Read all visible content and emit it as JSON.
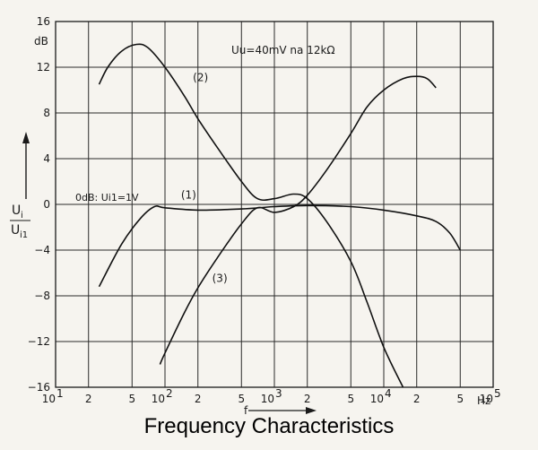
{
  "caption": "Frequency Characteristics",
  "chart_data": {
    "type": "line",
    "title": "",
    "xscale": "log",
    "xlim": [
      10,
      100000
    ],
    "ylim": [
      -16,
      16
    ],
    "y_unit_label": "dB",
    "ylabel_num": "U",
    "ylabel_num_sub": "i",
    "ylabel_den": "U",
    "ylabel_den_sub": "i1",
    "xlabel": "f",
    "x_unit_label": "Hz",
    "grid": true,
    "y_ticks": [
      {
        "value": 16,
        "label": "16"
      },
      {
        "value": 12,
        "label": "12"
      },
      {
        "value": 8,
        "label": "8"
      },
      {
        "value": 4,
        "label": "4"
      },
      {
        "value": 0,
        "label": "0"
      },
      {
        "value": -4,
        "label": "−4"
      },
      {
        "value": -8,
        "label": "−8"
      },
      {
        "value": -12,
        "label": "−12"
      },
      {
        "value": -16,
        "label": "−16"
      }
    ],
    "x_ticks": [
      {
        "value": 10,
        "base": "10",
        "exp": "1"
      },
      {
        "value": 20,
        "base": "2",
        "exp": ""
      },
      {
        "value": 50,
        "base": "5",
        "exp": ""
      },
      {
        "value": 100,
        "base": "10",
        "exp": "2"
      },
      {
        "value": 200,
        "base": "2",
        "exp": ""
      },
      {
        "value": 500,
        "base": "5",
        "exp": ""
      },
      {
        "value": 1000,
        "base": "10",
        "exp": "3"
      },
      {
        "value": 2000,
        "base": "2",
        "exp": ""
      },
      {
        "value": 5000,
        "base": "5",
        "exp": ""
      },
      {
        "value": 10000,
        "base": "10",
        "exp": "4"
      },
      {
        "value": 20000,
        "base": "2",
        "exp": ""
      },
      {
        "value": 50000,
        "base": "5",
        "exp": ""
      },
      {
        "value": 100000,
        "base": "10",
        "exp": "5"
      }
    ],
    "annotations": [
      {
        "id": "condition",
        "text": "Uu=40mV  na  12kΩ"
      },
      {
        "id": "reference",
        "text": "0dB: Ui1=1V"
      }
    ],
    "series": [
      {
        "name": "(1)",
        "x": [
          25,
          40,
          60,
          80,
          100,
          200,
          500,
          1000,
          2000,
          5000,
          10000,
          20000,
          30000,
          40000,
          50000
        ],
        "y": [
          -7.2,
          -3.5,
          -1.2,
          -0.2,
          -0.3,
          -0.5,
          -0.4,
          -0.2,
          -0.1,
          -0.2,
          -0.5,
          -1.0,
          -1.5,
          -2.5,
          -4.0
        ]
      },
      {
        "name": "(2)",
        "x": [
          25,
          30,
          40,
          55,
          70,
          100,
          150,
          200,
          300,
          500,
          700,
          1000,
          1500,
          2000,
          3000,
          5000,
          7000,
          10000,
          15000
        ],
        "y": [
          10.5,
          12.0,
          13.4,
          14.0,
          13.7,
          12.0,
          9.5,
          7.5,
          5.0,
          2.0,
          0.5,
          0.5,
          0.9,
          0.5,
          -1.5,
          -5.0,
          -8.5,
          -12.5,
          -16.0
        ]
      },
      {
        "name": "(3)",
        "x": [
          90,
          100,
          150,
          200,
          300,
          500,
          700,
          1000,
          1500,
          2000,
          3000,
          5000,
          7000,
          10000,
          15000,
          20000,
          25000,
          30000
        ],
        "y": [
          -14.0,
          -13.0,
          -9.5,
          -7.3,
          -4.7,
          -1.7,
          -0.3,
          -0.7,
          -0.2,
          0.8,
          3.0,
          6.2,
          8.5,
          10.0,
          11.0,
          11.2,
          11.0,
          10.2
        ]
      }
    ],
    "series_label_positions": [
      {
        "name": "(1)",
        "x": 140,
        "y": 0.5
      },
      {
        "name": "(2)",
        "x": 180,
        "y": 10.8
      },
      {
        "name": "(3)",
        "x": 270,
        "y": -6.8
      }
    ]
  }
}
